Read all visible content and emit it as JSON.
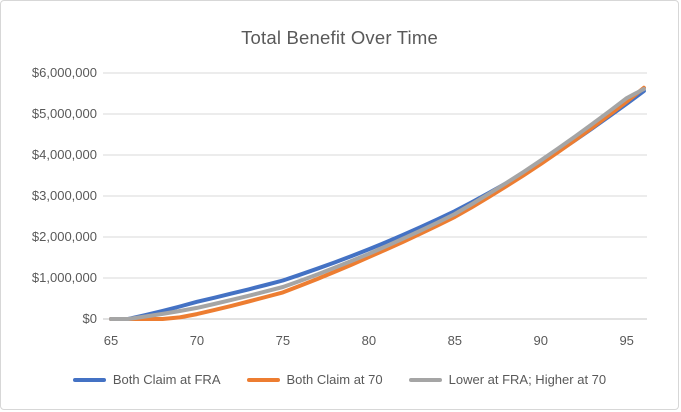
{
  "chart": {
    "title": "Total Benefit Over Time",
    "border_color": "#d7d7d7",
    "gridline_color": "#d9d9d9",
    "axis_line_color": "#c6c6c6",
    "text_color": "#595959"
  },
  "chart_data": {
    "type": "line",
    "title": "Total Benefit Over Time",
    "xlabel": "",
    "ylabel": "",
    "xlim": [
      65,
      96
    ],
    "ylim": [
      0,
      6000000
    ],
    "grid": true,
    "legend_position": "bottom",
    "x_ticks": [
      "65",
      "70",
      "75",
      "80",
      "85",
      "90",
      "95"
    ],
    "x_tick_values": [
      65,
      70,
      75,
      80,
      85,
      90,
      95
    ],
    "y_ticks": [
      "$0",
      "$1,000,000",
      "$2,000,000",
      "$3,000,000",
      "$4,000,000",
      "$5,000,000",
      "$6,000,000"
    ],
    "y_tick_values": [
      0,
      1000000,
      2000000,
      3000000,
      4000000,
      5000000,
      6000000
    ],
    "x": [
      65,
      66,
      67,
      68,
      69,
      70,
      71,
      72,
      73,
      74,
      75,
      76,
      77,
      78,
      79,
      80,
      81,
      82,
      83,
      84,
      85,
      86,
      87,
      88,
      89,
      90,
      91,
      92,
      93,
      94,
      95,
      96
    ],
    "series": [
      {
        "name": "Both Claim at FRA",
        "color": "#4472C4",
        "values": [
          0,
          0,
          95000,
          195000,
          305000,
          420000,
          518000,
          619000,
          723000,
          830000,
          940000,
          1080000,
          1226000,
          1378000,
          1536000,
          1700000,
          1874000,
          2054000,
          2240000,
          2432000,
          2630000,
          2850000,
          3078000,
          3314000,
          3558000,
          3810000,
          4080000,
          4360000,
          4650000,
          4948000,
          5250000,
          5560000
        ]
      },
      {
        "name": "Both Claim at 70",
        "color": "#ED7D31",
        "values": [
          0,
          0,
          0,
          0,
          40000,
          120000,
          218000,
          320000,
          426000,
          536000,
          650000,
          810000,
          976000,
          1148000,
          1326000,
          1510000,
          1694000,
          1884000,
          2080000,
          2282000,
          2490000,
          2730000,
          2980000,
          3238000,
          3506000,
          3780000,
          4068000,
          4364000,
          4668000,
          4980000,
          5300000,
          5640000
        ]
      },
      {
        "name": "Lower at FRA; Higher at 70",
        "color": "#A5A5A5",
        "values": [
          0,
          0,
          60000,
          125000,
          195000,
          270000,
          366000,
          465000,
          567000,
          672000,
          780000,
          930000,
          1086000,
          1248000,
          1416000,
          1590000,
          1772000,
          1960000,
          2154000,
          2354000,
          2560000,
          2805000,
          3058000,
          3319000,
          3589000,
          3868000,
          4156000,
          4452000,
          4756000,
          5068000,
          5388000,
          5610000
        ]
      }
    ]
  }
}
